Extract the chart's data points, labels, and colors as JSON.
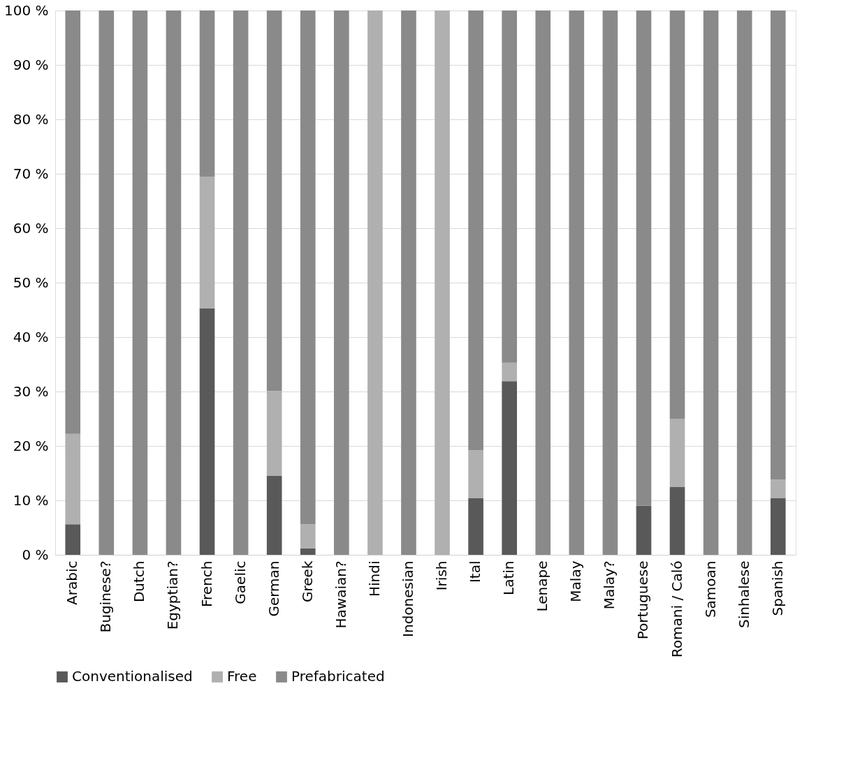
{
  "chart_data": {
    "type": "bar",
    "stacked": true,
    "categories": [
      "Arabic",
      "Buginese?",
      "Dutch",
      "Egyptian?",
      "French",
      "Gaelic",
      "German",
      "Greek",
      "Hawaian?",
      "Hindi",
      "Indonesian",
      "Irish",
      "Ital",
      "Latin",
      "Lenape",
      "Malay",
      "Malay?",
      "Portuguese",
      "Romani / Caló",
      "Samoan",
      "Sinhalese",
      "Spanish"
    ],
    "series": [
      {
        "name": "Conventionalised",
        "color": "#595959",
        "values": [
          5.6,
          0,
          0,
          0,
          45.3,
          0,
          14.5,
          1.2,
          0,
          0,
          0,
          0,
          10.4,
          31.9,
          0,
          0,
          0,
          9.0,
          12.5,
          0,
          0,
          10.4
        ]
      },
      {
        "name": "Free",
        "color": "#b0b0b0",
        "values": [
          16.6,
          0,
          0,
          0,
          24.2,
          0,
          15.6,
          4.4,
          0,
          100,
          0,
          100,
          8.8,
          3.4,
          0,
          0,
          0,
          0,
          12.5,
          0,
          0,
          3.4
        ]
      },
      {
        "name": "Prefabricated",
        "color": "#8a8a8a",
        "values": [
          77.8,
          100,
          100,
          100,
          30.5,
          100,
          69.9,
          94.4,
          100,
          0,
          100,
          0,
          80.8,
          64.7,
          100,
          100,
          100,
          91.0,
          75.0,
          100,
          100,
          86.2
        ]
      }
    ],
    "ylim": [
      0,
      100
    ],
    "yticks": [
      {
        "value": 0,
        "label": "0 %"
      },
      {
        "value": 10,
        "label": "10 %"
      },
      {
        "value": 20,
        "label": "20 %"
      },
      {
        "value": 30,
        "label": "30 %"
      },
      {
        "value": 40,
        "label": "40 %"
      },
      {
        "value": 50,
        "label": "50 %"
      },
      {
        "value": 60,
        "label": "60 %"
      },
      {
        "value": 70,
        "label": "70 %"
      },
      {
        "value": 80,
        "label": "80 %"
      },
      {
        "value": 90,
        "label": "90 %"
      },
      {
        "value": 100,
        "label": "100 %"
      }
    ],
    "grid": "y",
    "legend": "bottom"
  }
}
